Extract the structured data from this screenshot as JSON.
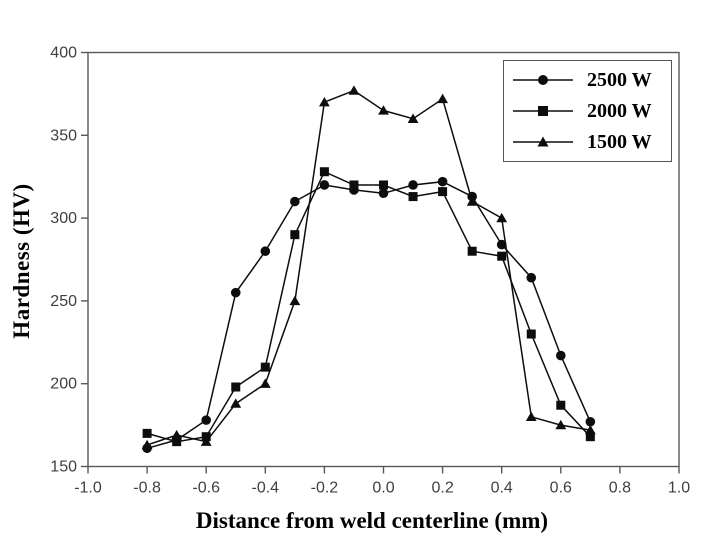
{
  "chart_data": {
    "type": "line",
    "title": "",
    "xlabel": "Distance from weld centerline (mm)",
    "ylabel": "Hardness (HV)",
    "xlim": [
      -1.0,
      1.0
    ],
    "ylim": [
      150,
      400
    ],
    "xticks": [
      -1.0,
      -0.8,
      -0.6,
      -0.4,
      -0.2,
      0.0,
      0.2,
      0.4,
      0.6,
      0.8,
      1.0
    ],
    "xtick_labels": [
      "-1.0",
      "-0.8",
      "-0.6",
      "-0.4",
      "-0.2",
      "0.0",
      "0.2",
      "0.4",
      "0.6",
      "0.8",
      "1.0"
    ],
    "yticks": [
      150,
      200,
      250,
      300,
      350,
      400
    ],
    "ytick_labels": [
      "150",
      "200",
      "250",
      "300",
      "350",
      "400"
    ],
    "grid": false,
    "legend_position": "top-right",
    "x": [
      -0.8,
      -0.7,
      -0.6,
      -0.5,
      -0.4,
      -0.3,
      -0.2,
      -0.1,
      0.0,
      0.1,
      0.2,
      0.3,
      0.4,
      0.5,
      0.6,
      0.7
    ],
    "series": [
      {
        "name": "2500 W",
        "marker": "circle",
        "values": [
          161,
          166,
          178,
          255,
          280,
          310,
          320,
          317,
          315,
          320,
          322,
          313,
          284,
          264,
          217,
          177
        ]
      },
      {
        "name": "2000 W",
        "marker": "square",
        "values": [
          170,
          165,
          168,
          198,
          210,
          290,
          328,
          320,
          320,
          313,
          316,
          280,
          277,
          230,
          187,
          168
        ]
      },
      {
        "name": "1500 W",
        "marker": "triangle",
        "values": [
          163,
          169,
          165,
          188,
          200,
          250,
          370,
          377,
          365,
          360,
          372,
          310,
          300,
          180,
          175,
          172
        ]
      }
    ],
    "colors": {
      "data": "#0d0d0d",
      "axis": "#58585a",
      "tick_label": "#3f3f3f",
      "title": "#000000",
      "background": "#ffffff"
    }
  }
}
